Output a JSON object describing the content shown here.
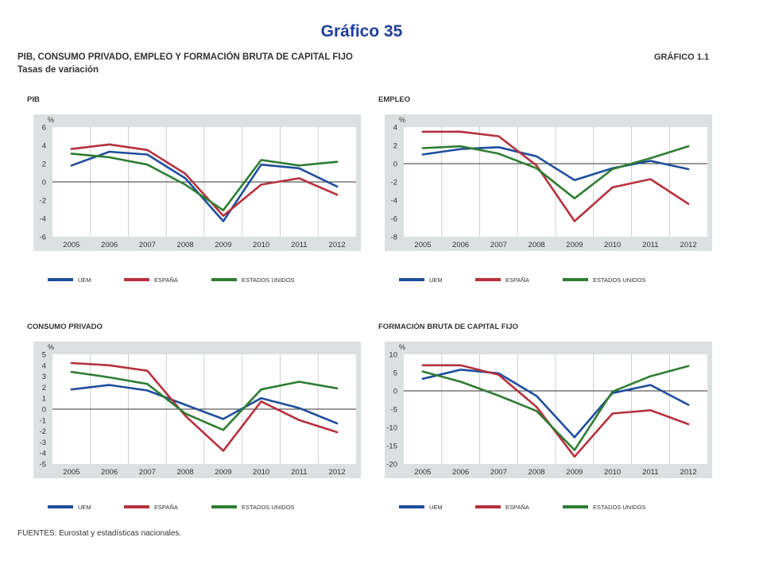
{
  "top_title": "Gráfico 35",
  "title": "PIB, CONSUMO PRIVADO, EMPLEO Y FORMACIÓN BRUTA DE CAPITAL FIJO",
  "subtitle": "Tasas de variación",
  "figure_label": "GRÁFICO 1.1",
  "sources": "FUENTES: Eurostat y estadísticas nacionales.",
  "colors": {
    "UEM": "#1f4e9c",
    "ESPAÑA": "#b5313d",
    "ESTADOS UNIDOS": "#2e7d32"
  },
  "chart_data": [
    {
      "type": "line",
      "title": "PIB",
      "ylabel": "%",
      "x": [
        "2005",
        "2006",
        "2007",
        "2008",
        "2009",
        "2010",
        "2011",
        "2012"
      ],
      "ylim": [
        -6,
        6
      ],
      "yticks": [
        -6,
        -4,
        -2,
        0,
        2,
        4,
        6
      ],
      "series": [
        {
          "name": "UEM",
          "values": [
            1.8,
            3.3,
            3.0,
            0.4,
            -4.3,
            1.9,
            1.5,
            -0.5
          ]
        },
        {
          "name": "ESPAÑA",
          "values": [
            3.6,
            4.1,
            3.5,
            0.9,
            -3.7,
            -0.3,
            0.4,
            -1.4
          ]
        },
        {
          "name": "ESTADOS UNIDOS",
          "values": [
            3.1,
            2.7,
            1.9,
            -0.3,
            -3.1,
            2.4,
            1.8,
            2.2
          ]
        }
      ]
    },
    {
      "type": "line",
      "title": "EMPLEO",
      "ylabel": "%",
      "x": [
        "2005",
        "2006",
        "2007",
        "2008",
        "2009",
        "2010",
        "2011",
        "2012"
      ],
      "ylim": [
        -8,
        4
      ],
      "yticks": [
        -8,
        -6,
        -4,
        -2,
        0,
        2,
        4
      ],
      "series": [
        {
          "name": "UEM",
          "values": [
            1.0,
            1.6,
            1.8,
            0.8,
            -1.8,
            -0.5,
            0.3,
            -0.6
          ]
        },
        {
          "name": "ESPAÑA",
          "values": [
            3.5,
            3.5,
            3.0,
            -0.2,
            -6.3,
            -2.6,
            -1.7,
            -4.4
          ]
        },
        {
          "name": "ESTADOS UNIDOS",
          "values": [
            1.7,
            1.9,
            1.1,
            -0.5,
            -3.8,
            -0.6,
            0.6,
            1.9
          ]
        }
      ]
    },
    {
      "type": "line",
      "title": "CONSUMO PRIVADO",
      "ylabel": "%",
      "x": [
        "2005",
        "2006",
        "2007",
        "2008",
        "2009",
        "2010",
        "2011",
        "2012"
      ],
      "ylim": [
        -5,
        5
      ],
      "yticks": [
        -5,
        -4,
        -3,
        -2,
        -1,
        0,
        1,
        2,
        3,
        4,
        5
      ],
      "series": [
        {
          "name": "UEM",
          "values": [
            1.8,
            2.2,
            1.7,
            0.4,
            -0.9,
            1.0,
            0.1,
            -1.3
          ]
        },
        {
          "name": "ESPAÑA",
          "values": [
            4.2,
            4.0,
            3.5,
            -0.6,
            -3.8,
            0.7,
            -1.0,
            -2.1
          ]
        },
        {
          "name": "ESTADOS UNIDOS",
          "values": [
            3.4,
            2.9,
            2.3,
            -0.4,
            -1.9,
            1.8,
            2.5,
            1.9
          ]
        }
      ]
    },
    {
      "type": "line",
      "title": "FORMACIÓN BRUTA DE CAPITAL FIJO",
      "ylabel": "%",
      "x": [
        "2005",
        "2006",
        "2007",
        "2008",
        "2009",
        "2010",
        "2011",
        "2012"
      ],
      "ylim": [
        -20,
        10
      ],
      "yticks": [
        -20,
        -15,
        -10,
        -5,
        0,
        5,
        10
      ],
      "series": [
        {
          "name": "UEM",
          "values": [
            3.3,
            5.8,
            4.8,
            -1.4,
            -12.7,
            -0.6,
            1.6,
            -3.8
          ]
        },
        {
          "name": "ESPAÑA",
          "values": [
            7.0,
            7.0,
            4.4,
            -4.4,
            -18.0,
            -6.2,
            -5.3,
            -9.1
          ]
        },
        {
          "name": "ESTADOS UNIDOS",
          "values": [
            5.3,
            2.5,
            -1.3,
            -5.5,
            -16.2,
            -0.2,
            4.0,
            6.8
          ]
        }
      ]
    }
  ]
}
